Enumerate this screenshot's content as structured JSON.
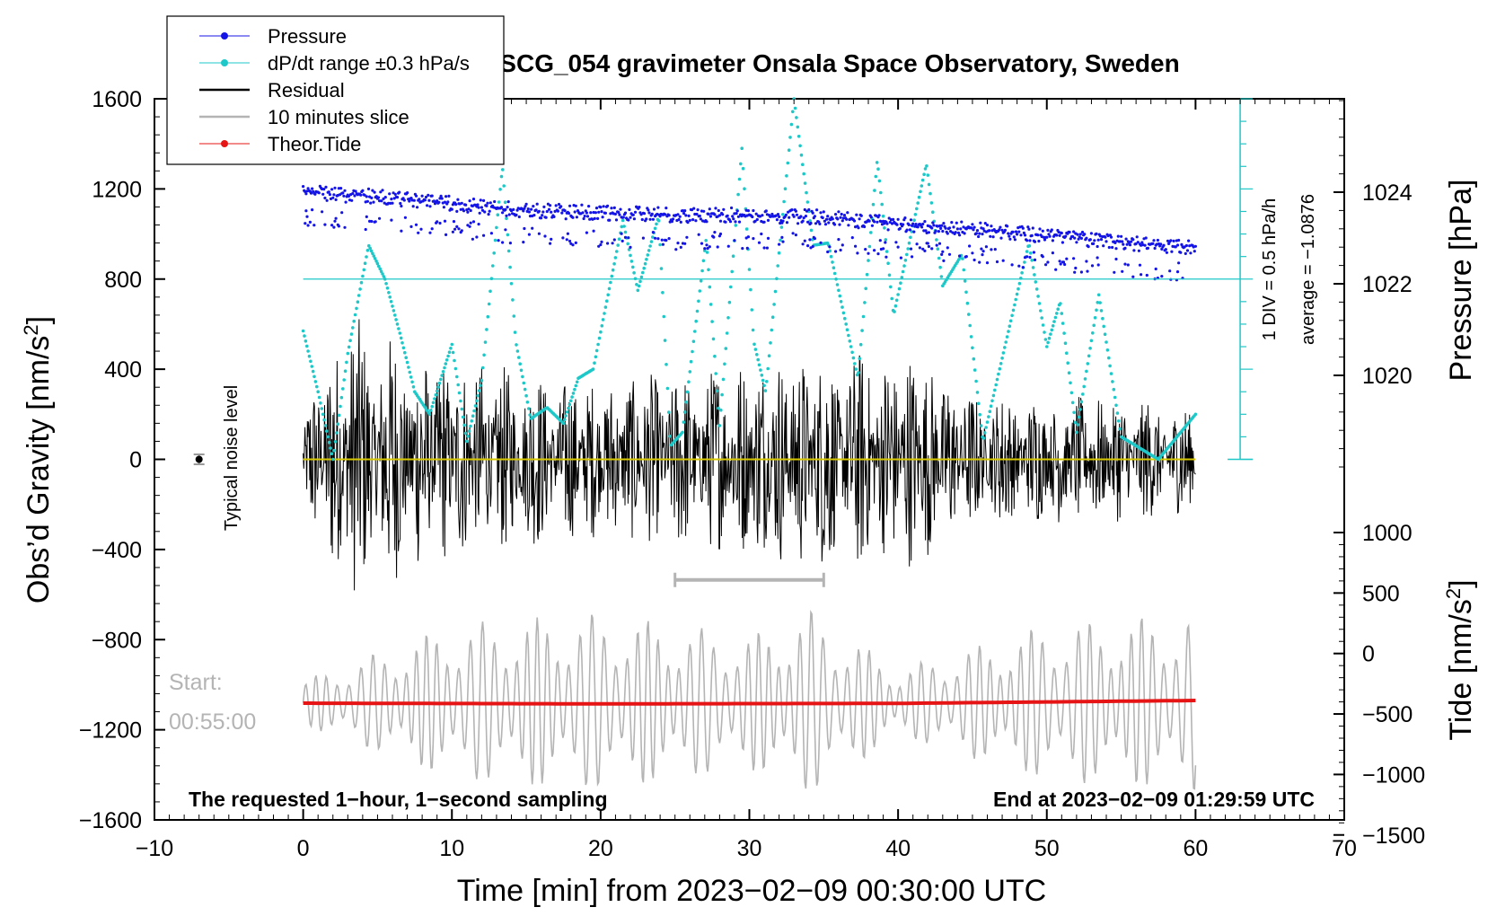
{
  "chart_data": {
    "type": "line",
    "title": "SCG_054 gravimeter Onsala Space Observatory, Sweden",
    "xlabel": "Time [min] from 2023−02−09 00:30:00 UTC",
    "ylabel_left_main": "Obs’d Gravity [nm/s",
    "ylabel_left_sup": "2",
    "ylabel_left_end": "]",
    "ylabel_right_top": "Pressure [hPa]",
    "ylabel_right_bottom_main": "Tide [nm/s",
    "ylabel_right_bottom_sup": "2",
    "ylabel_right_bottom_end": "]",
    "xlim": [
      -10,
      70
    ],
    "ylim": [
      -1600,
      1600
    ],
    "pressure_axis": {
      "range": [
        1018,
        1026
      ],
      "ticks": [
        1020,
        1022,
        1024
      ]
    },
    "tide_axis": {
      "range": [
        -1500,
        1000
      ],
      "ticks": [
        -1500,
        -1000,
        -500,
        0,
        500,
        1000
      ]
    },
    "x_ticks": [
      -10,
      0,
      10,
      20,
      30,
      40,
      50,
      60,
      70
    ],
    "x_tick_labels": [
      "−10",
      "0",
      "10",
      "20",
      "30",
      "40",
      "50",
      "60",
      "70"
    ],
    "y_ticks": [
      -1600,
      -1200,
      -800,
      -400,
      0,
      400,
      800,
      1200,
      1600
    ],
    "y_tick_labels": [
      "−1600",
      "−1200",
      "−800",
      "−400",
      "0",
      "400",
      "800",
      "1200",
      "1600"
    ],
    "pressure_tick_labels": [
      "1020",
      "1022",
      "1024"
    ],
    "tide_tick_labels": [
      "−1500",
      "−1000",
      "−500",
      "0",
      "500",
      "1000"
    ],
    "legend": {
      "position": "top-left",
      "entries": [
        {
          "label": "Pressure",
          "color": "#1414e6",
          "style": "line-dot"
        },
        {
          "label": "dP/dt range ±0.3 hPa/s",
          "color": "#1ec8c8",
          "style": "line-dot"
        },
        {
          "label": "Residual",
          "color": "#000000",
          "style": "line"
        },
        {
          "label": "10 minutes slice",
          "color": "#b4b4b4",
          "style": "line"
        },
        {
          "label": "Theor.Tide",
          "color": "#e61414",
          "style": "line-dot"
        }
      ]
    },
    "series": [
      {
        "name": "Pressure",
        "unit": "hPa",
        "x": [
          0,
          5,
          10,
          15,
          20,
          25,
          30,
          35,
          40,
          45,
          50,
          55,
          60
        ],
        "values": [
          1024.0,
          1023.9,
          1023.75,
          1023.6,
          1023.55,
          1023.5,
          1023.5,
          1023.45,
          1023.3,
          1023.2,
          1023.05,
          1022.9,
          1022.8
        ]
      },
      {
        "name": "dP/dt range ±0.3 hPa/s",
        "unit": "nm/s2 (plotted)",
        "x": [
          0,
          1,
          2,
          3,
          4.4,
          5.5,
          6.5,
          7.5,
          8.5,
          10,
          11,
          12,
          13.4,
          14.3,
          15.3,
          16.4,
          17.5,
          18.5,
          19.5,
          21.5,
          22.5,
          23.9,
          24.7,
          25.5,
          27.1,
          28,
          29.5,
          30.3,
          31.1,
          33,
          34.3,
          35.3,
          37.3,
          38.6,
          39.7,
          41.9,
          43,
          44.3,
          45.7,
          48.8,
          50,
          50.9,
          52,
          53.5,
          55,
          57.5,
          60
        ],
        "values": [
          570,
          300,
          0,
          470,
          950,
          800,
          560,
          300,
          200,
          510,
          80,
          350,
          1300,
          520,
          180,
          230,
          160,
          360,
          400,
          1060,
          750,
          1080,
          60,
          120,
          980,
          150,
          1380,
          520,
          300,
          1600,
          950,
          960,
          360,
          1330,
          640,
          1310,
          770,
          910,
          80,
          960,
          500,
          700,
          120,
          730,
          100,
          0,
          200
        ]
      },
      {
        "name": "Residual",
        "unit": "nm/s2",
        "x": [
          0,
          3,
          10,
          20,
          27,
          32,
          35,
          41,
          45,
          55,
          60
        ],
        "values": [
          0,
          0,
          0,
          0,
          0,
          0,
          0,
          0,
          0,
          0,
          0
        ],
        "envelope": [
          250,
          650,
          450,
          350,
          420,
          470,
          500,
          480,
          300,
          280,
          250
        ]
      },
      {
        "name": "10 minutes slice",
        "unit": "nm/s2",
        "x": [
          0,
          10,
          20,
          30,
          34,
          40,
          50,
          60
        ],
        "center": -1080,
        "amplitude": [
          100,
          350,
          400,
          300,
          420,
          150,
          350,
          400
        ]
      },
      {
        "name": "Theor.Tide",
        "unit": "nm/s2",
        "x": [
          0,
          20,
          40,
          60
        ],
        "values": [
          -1082,
          -1085,
          -1083,
          -1070
        ]
      }
    ],
    "slice_marker": {
      "x_start": 25,
      "x_end": 35,
      "y": -535
    },
    "noise_marker": {
      "x": -7,
      "y": 0,
      "err": 22
    },
    "average_label": "average = −1.0876",
    "div_label": "1 DIV = 0.5 hPa/h",
    "noise_label": "Typical noise level",
    "start_label": "Start:",
    "start_time": "00:55:00",
    "note_left": "The requested 1−hour, 1−second sampling",
    "note_right": "End at 2023−02−09 01:29:59 UTC"
  }
}
